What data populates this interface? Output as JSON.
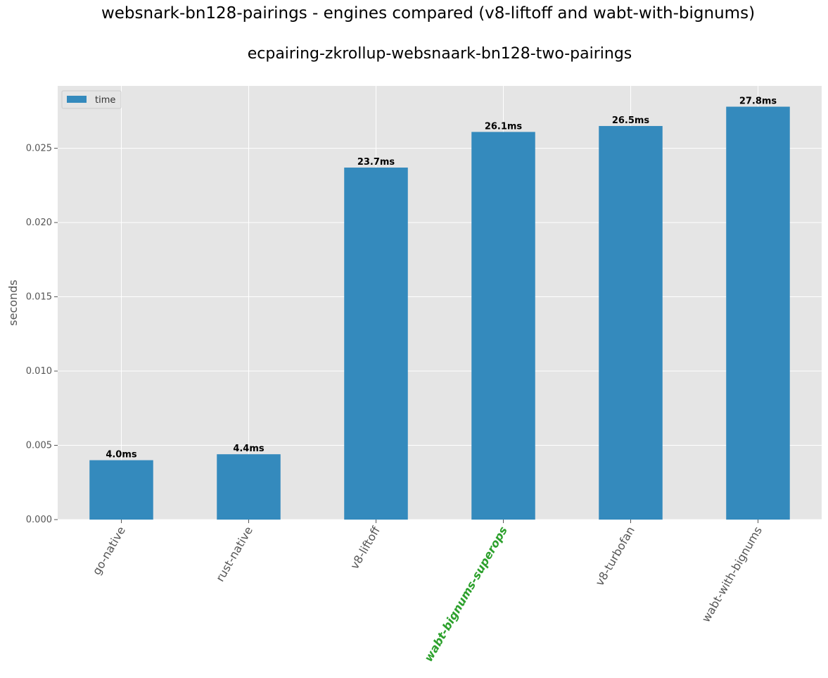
{
  "chart_data": {
    "type": "bar",
    "title": "websnark-bn128-pairings - engines compared (v8-liftoff and wabt-with-bignums)",
    "subtitle": "ecpairing-zkrollup-websnaark-bn128-two-pairings",
    "xlabel": "",
    "ylabel": "seconds",
    "ylim": [
      0,
      0.0292
    ],
    "yticks": [
      "0.000",
      "0.005",
      "0.010",
      "0.015",
      "0.020",
      "0.025"
    ],
    "grid": true,
    "legend_position": "top-left",
    "categories": [
      "go-native",
      "rust-native",
      "v8-liftoff",
      "wabt-bignums-superops",
      "v8-turbofan",
      "wabt-with-bignums"
    ],
    "highlighted_category": "wabt-bignums-superops",
    "series": [
      {
        "name": "time",
        "values": [
          0.004,
          0.0044,
          0.0237,
          0.0261,
          0.0265,
          0.0278
        ],
        "labels": [
          "4.0ms",
          "4.4ms",
          "23.7ms",
          "26.1ms",
          "26.5ms",
          "27.8ms"
        ]
      }
    ],
    "colors": {
      "bar": "#348abd",
      "plot_background": "#e5e5e5",
      "grid": "#ffffff",
      "highlight_label": "#2ca02c"
    }
  }
}
